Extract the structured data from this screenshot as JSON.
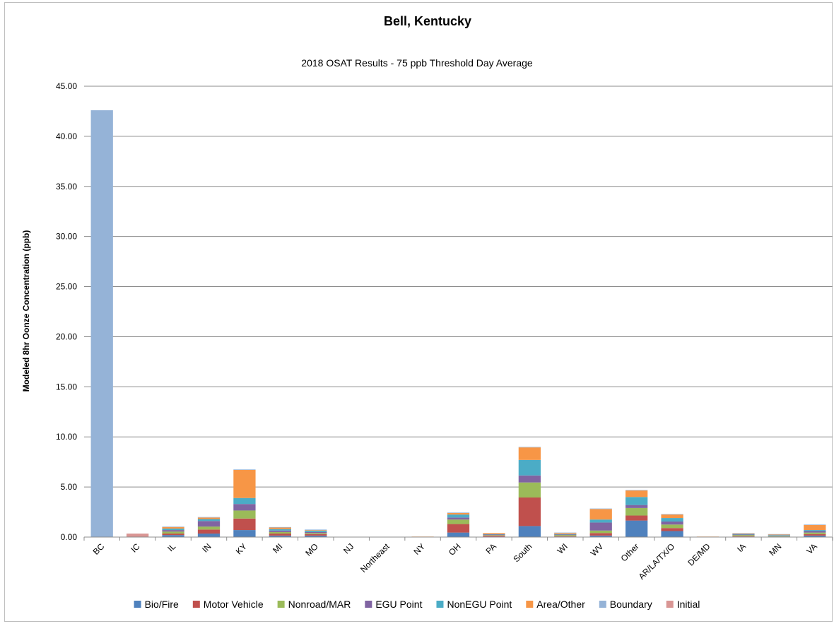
{
  "chart_data": {
    "type": "bar",
    "stacked": true,
    "title": "Bell, Kentucky",
    "subtitle": "2018 OSAT Results - 75 ppb Threshold Day Average",
    "ylabel": "Modeled 8hr Oonze Concentration (ppb)",
    "xlabel": "",
    "ylim": [
      0,
      45
    ],
    "yticks": [
      "0.00",
      "5.00",
      "10.00",
      "15.00",
      "20.00",
      "25.00",
      "30.00",
      "35.00",
      "40.00",
      "45.00"
    ],
    "grid": true,
    "legend_position": "bottom",
    "categories": [
      "BC",
      "IC",
      "IL",
      "IN",
      "KY",
      "MI",
      "MO",
      "NJ",
      "Northeast",
      "NY",
      "OH",
      "PA",
      "South",
      "WI",
      "WV",
      "Other",
      "AR/LA/TX/O",
      "DE/MD",
      "IA",
      "MN",
      "VA"
    ],
    "series": [
      {
        "name": "Bio/Fire",
        "color": "#4f81bd",
        "values": [
          0,
          0,
          0.2,
          0.35,
          0.7,
          0.15,
          0.15,
          0,
          0,
          0,
          0.45,
          0.05,
          1.1,
          0.05,
          0.15,
          1.65,
          0.6,
          0,
          0.05,
          0.05,
          0.15
        ]
      },
      {
        "name": "Motor Vehicle",
        "color": "#c0504d",
        "values": [
          0,
          0,
          0.15,
          0.4,
          1.15,
          0.2,
          0.15,
          0,
          0,
          0,
          0.85,
          0.1,
          2.85,
          0.05,
          0.25,
          0.5,
          0.3,
          0,
          0.05,
          0,
          0.15
        ]
      },
      {
        "name": "Nonroad/MAR",
        "color": "#9bbb59",
        "values": [
          0,
          0,
          0.2,
          0.3,
          0.8,
          0.15,
          0.1,
          0,
          0,
          0,
          0.45,
          0.05,
          1.5,
          0.1,
          0.25,
          0.75,
          0.35,
          0,
          0.1,
          0.05,
          0.15
        ]
      },
      {
        "name": "EGU Point",
        "color": "#8064a2",
        "values": [
          0,
          0,
          0.15,
          0.55,
          0.65,
          0.15,
          0.1,
          0,
          0,
          0,
          0.2,
          0.05,
          0.7,
          0.05,
          0.8,
          0.3,
          0.3,
          0,
          0.05,
          0.05,
          0.15
        ]
      },
      {
        "name": "NonEGU Point",
        "color": "#4bacc6",
        "values": [
          0,
          0,
          0.15,
          0.2,
          0.6,
          0.15,
          0.15,
          0,
          0,
          0,
          0.3,
          0.05,
          1.55,
          0.05,
          0.3,
          0.8,
          0.35,
          0,
          0.05,
          0.05,
          0.1
        ]
      },
      {
        "name": "Area/Other",
        "color": "#f79646",
        "values": [
          0,
          0,
          0.15,
          0.15,
          2.8,
          0.15,
          0.05,
          0,
          0,
          0.05,
          0.15,
          0.1,
          1.25,
          0.1,
          1.05,
          0.65,
          0.35,
          0.05,
          0.05,
          0.05,
          0.5
        ]
      },
      {
        "name": "Boundary",
        "color": "#95b3d7",
        "values": [
          42.6,
          0,
          0.05,
          0.05,
          0.05,
          0.05,
          0.05,
          0,
          0,
          0,
          0.05,
          0,
          0.05,
          0.05,
          0.05,
          0.05,
          0.05,
          0,
          0.05,
          0.05,
          0.05
        ]
      },
      {
        "name": "Initial",
        "color": "#d99694",
        "values": [
          0,
          0.35,
          0,
          0,
          0,
          0,
          0,
          0,
          0,
          0,
          0,
          0,
          0,
          0,
          0,
          0,
          0,
          0,
          0,
          0,
          0
        ]
      }
    ]
  }
}
